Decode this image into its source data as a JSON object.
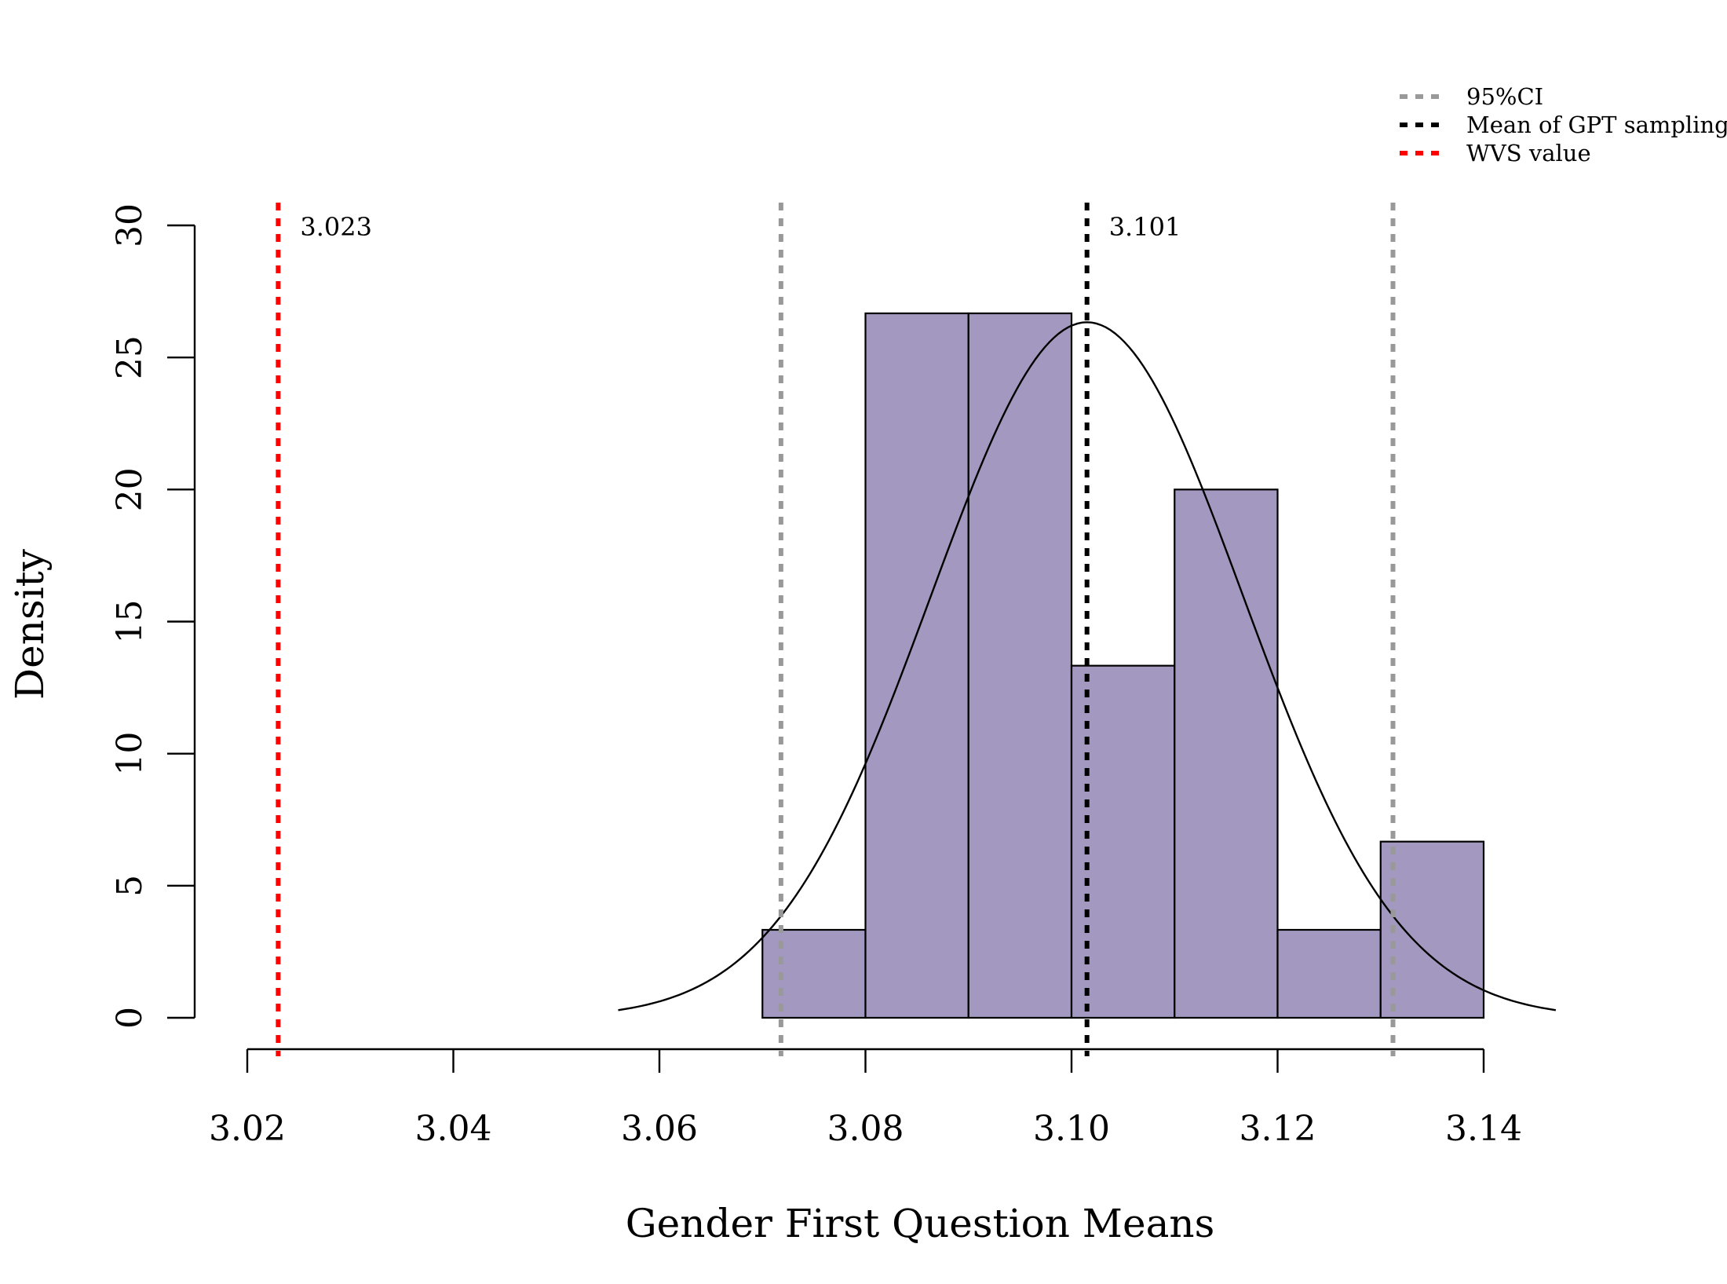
{
  "chart_data": {
    "type": "bar",
    "title": "",
    "xlabel": "Gender First Question Means",
    "ylabel": "Density",
    "xlim": [
      3.02,
      3.14
    ],
    "ylim": [
      0,
      30
    ],
    "x_ticks": [
      "3.02",
      "3.04",
      "3.06",
      "3.08",
      "3.10",
      "3.12",
      "3.14"
    ],
    "y_ticks": [
      "0",
      "5",
      "10",
      "15",
      "20",
      "25",
      "30"
    ],
    "bins": [
      {
        "x0": 3.07,
        "x1": 3.08,
        "density": 3.33
      },
      {
        "x0": 3.08,
        "x1": 3.09,
        "density": 26.67
      },
      {
        "x0": 3.09,
        "x1": 3.1,
        "density": 26.67
      },
      {
        "x0": 3.1,
        "x1": 3.11,
        "density": 13.33
      },
      {
        "x0": 3.11,
        "x1": 3.12,
        "density": 20.0
      },
      {
        "x0": 3.12,
        "x1": 3.13,
        "density": 3.33
      },
      {
        "x0": 3.13,
        "x1": 3.14,
        "density": 6.67
      }
    ],
    "bar_color": "#a398bf",
    "normal_curve": {
      "mean": 3.1015,
      "sd": 0.01515,
      "x_range": [
        3.056,
        3.147
      ]
    },
    "reference_lines": [
      {
        "name": "95%CI",
        "x": 3.0718,
        "color": "#999999",
        "label": ""
      },
      {
        "name": "95%CI",
        "x": 3.1312,
        "color": "#999999",
        "label": ""
      },
      {
        "name": "Mean of GPT sampling",
        "x": 3.1015,
        "color": "#000000",
        "label": "3.101"
      },
      {
        "name": "WVS value",
        "x": 3.023,
        "color": "#ff0000",
        "label": "3.023"
      }
    ],
    "legend": {
      "position": "top-right",
      "items": [
        {
          "label": "95%CI",
          "color": "#999999"
        },
        {
          "label": "Mean of GPT sampling",
          "color": "#000000"
        },
        {
          "label": "WVS value",
          "color": "#ff0000"
        }
      ]
    },
    "grid": false
  }
}
